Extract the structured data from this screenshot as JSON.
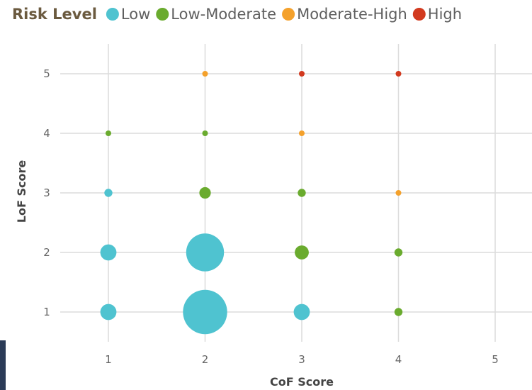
{
  "chart_data": {
    "type": "scatter",
    "legend": {
      "title": "Risk Level",
      "placement": "top-left",
      "entries": [
        {
          "name": "Low",
          "color": "#4fc3d0"
        },
        {
          "name": "Low-Moderate",
          "color": "#6aab2e"
        },
        {
          "name": "Moderate-High",
          "color": "#f4a12c"
        },
        {
          "name": "High",
          "color": "#d23a1f"
        }
      ]
    },
    "xlabel": "CoF Score",
    "ylabel": "LoF Score",
    "xlim": [
      0.25,
      5.25
    ],
    "ylim": [
      0.5,
      5.5
    ],
    "xticks": [
      1,
      2,
      3,
      4,
      5
    ],
    "yticks": [
      1,
      2,
      3,
      4,
      5
    ],
    "grid": true,
    "series": [
      {
        "name": "Low",
        "color": "#4fc3d0",
        "points": [
          {
            "x": 1,
            "y": 3,
            "size": 1
          },
          {
            "x": 1,
            "y": 2,
            "size": 4
          },
          {
            "x": 1,
            "y": 1,
            "size": 4
          },
          {
            "x": 2,
            "y": 2,
            "size": 22
          },
          {
            "x": 2,
            "y": 1,
            "size": 30
          },
          {
            "x": 3,
            "y": 1,
            "size": 4
          }
        ]
      },
      {
        "name": "Low-Moderate",
        "color": "#6aab2e",
        "points": [
          {
            "x": 1,
            "y": 4,
            "size": 0.5
          },
          {
            "x": 2,
            "y": 4,
            "size": 0.5
          },
          {
            "x": 2,
            "y": 3,
            "size": 2
          },
          {
            "x": 3,
            "y": 3,
            "size": 1
          },
          {
            "x": 3,
            "y": 2,
            "size": 3
          },
          {
            "x": 4,
            "y": 2,
            "size": 1
          },
          {
            "x": 4,
            "y": 1,
            "size": 1
          }
        ]
      },
      {
        "name": "Moderate-High",
        "color": "#f4a12c",
        "points": [
          {
            "x": 2,
            "y": 5,
            "size": 0.5
          },
          {
            "x": 3,
            "y": 4,
            "size": 0.5
          },
          {
            "x": 4,
            "y": 3,
            "size": 0.5
          }
        ]
      },
      {
        "name": "High",
        "color": "#d23a1f",
        "points": [
          {
            "x": 3,
            "y": 5,
            "size": 0.5
          },
          {
            "x": 4,
            "y": 5,
            "size": 0.5
          }
        ]
      }
    ]
  }
}
